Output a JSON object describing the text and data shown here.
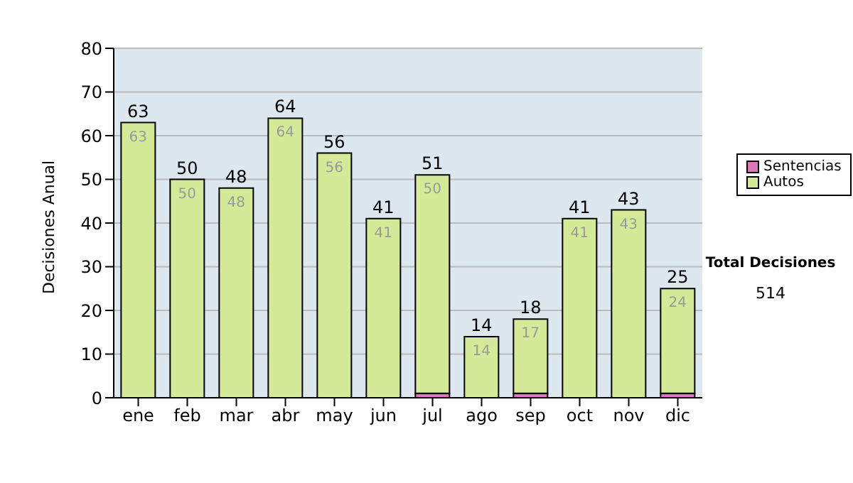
{
  "chart_data": {
    "type": "bar",
    "ylabel": "Decisiones Anual",
    "categories": [
      "ene",
      "feb",
      "mar",
      "abr",
      "may",
      "jun",
      "jul",
      "ago",
      "sep",
      "oct",
      "nov",
      "dic"
    ],
    "series": [
      {
        "name": "Sentencias",
        "color": "#dd77bb",
        "values": [
          0,
          0,
          0,
          0,
          0,
          0,
          1,
          0,
          1,
          0,
          0,
          1
        ]
      },
      {
        "name": "Autos",
        "color": "#d4ea98",
        "values": [
          63,
          50,
          48,
          64,
          56,
          41,
          50,
          14,
          17,
          41,
          43,
          24
        ],
        "value_labels": [
          "63",
          "50",
          "48",
          "64",
          "56",
          "41",
          "50",
          "14",
          "17",
          "41",
          "43",
          "24"
        ]
      }
    ],
    "stacked": true,
    "totals": [
      "63",
      "50",
      "48",
      "64",
      "56",
      "41",
      "51",
      "14",
      "18",
      "41",
      "43",
      "25"
    ],
    "ylim": [
      0,
      80
    ],
    "yticks": [
      0,
      10,
      20,
      30,
      40,
      50,
      60,
      70,
      80
    ],
    "grid": "y",
    "legend": "right",
    "annotations": [
      "Total Decisiones",
      "514"
    ]
  }
}
